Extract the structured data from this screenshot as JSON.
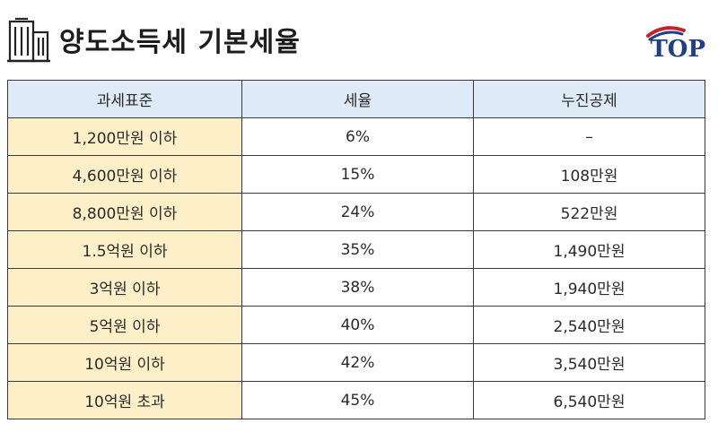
{
  "title": "양도소득세 기본세율",
  "logo": {
    "text": "TOP",
    "accent": "#1f3f86",
    "swoosh": "#c8202c"
  },
  "table": {
    "headers": [
      "과세표준",
      "세율",
      "누진공제"
    ],
    "rows": [
      {
        "base": "1,200만원 이하",
        "rate": "6%",
        "deduction": "–"
      },
      {
        "base": "4,600만원 이하",
        "rate": "15%",
        "deduction": "108만원"
      },
      {
        "base": "8,800만원 이하",
        "rate": "24%",
        "deduction": "522만원"
      },
      {
        "base": "1.5억원 이하",
        "rate": "35%",
        "deduction": "1,490만원"
      },
      {
        "base": "3억원 이하",
        "rate": "38%",
        "deduction": "1,940만원"
      },
      {
        "base": "5억원 이하",
        "rate": "40%",
        "deduction": "2,540만원"
      },
      {
        "base": "10억원 이하",
        "rate": "42%",
        "deduction": "3,540만원"
      },
      {
        "base": "10억원 초과",
        "rate": "45%",
        "deduction": "6,540만원"
      }
    ]
  },
  "colors": {
    "header_bg": "#deebf7",
    "first_col_bg": "#fdf0c8",
    "border": "#3a3a3a"
  },
  "icons": {
    "title_icon": "building-icon"
  }
}
